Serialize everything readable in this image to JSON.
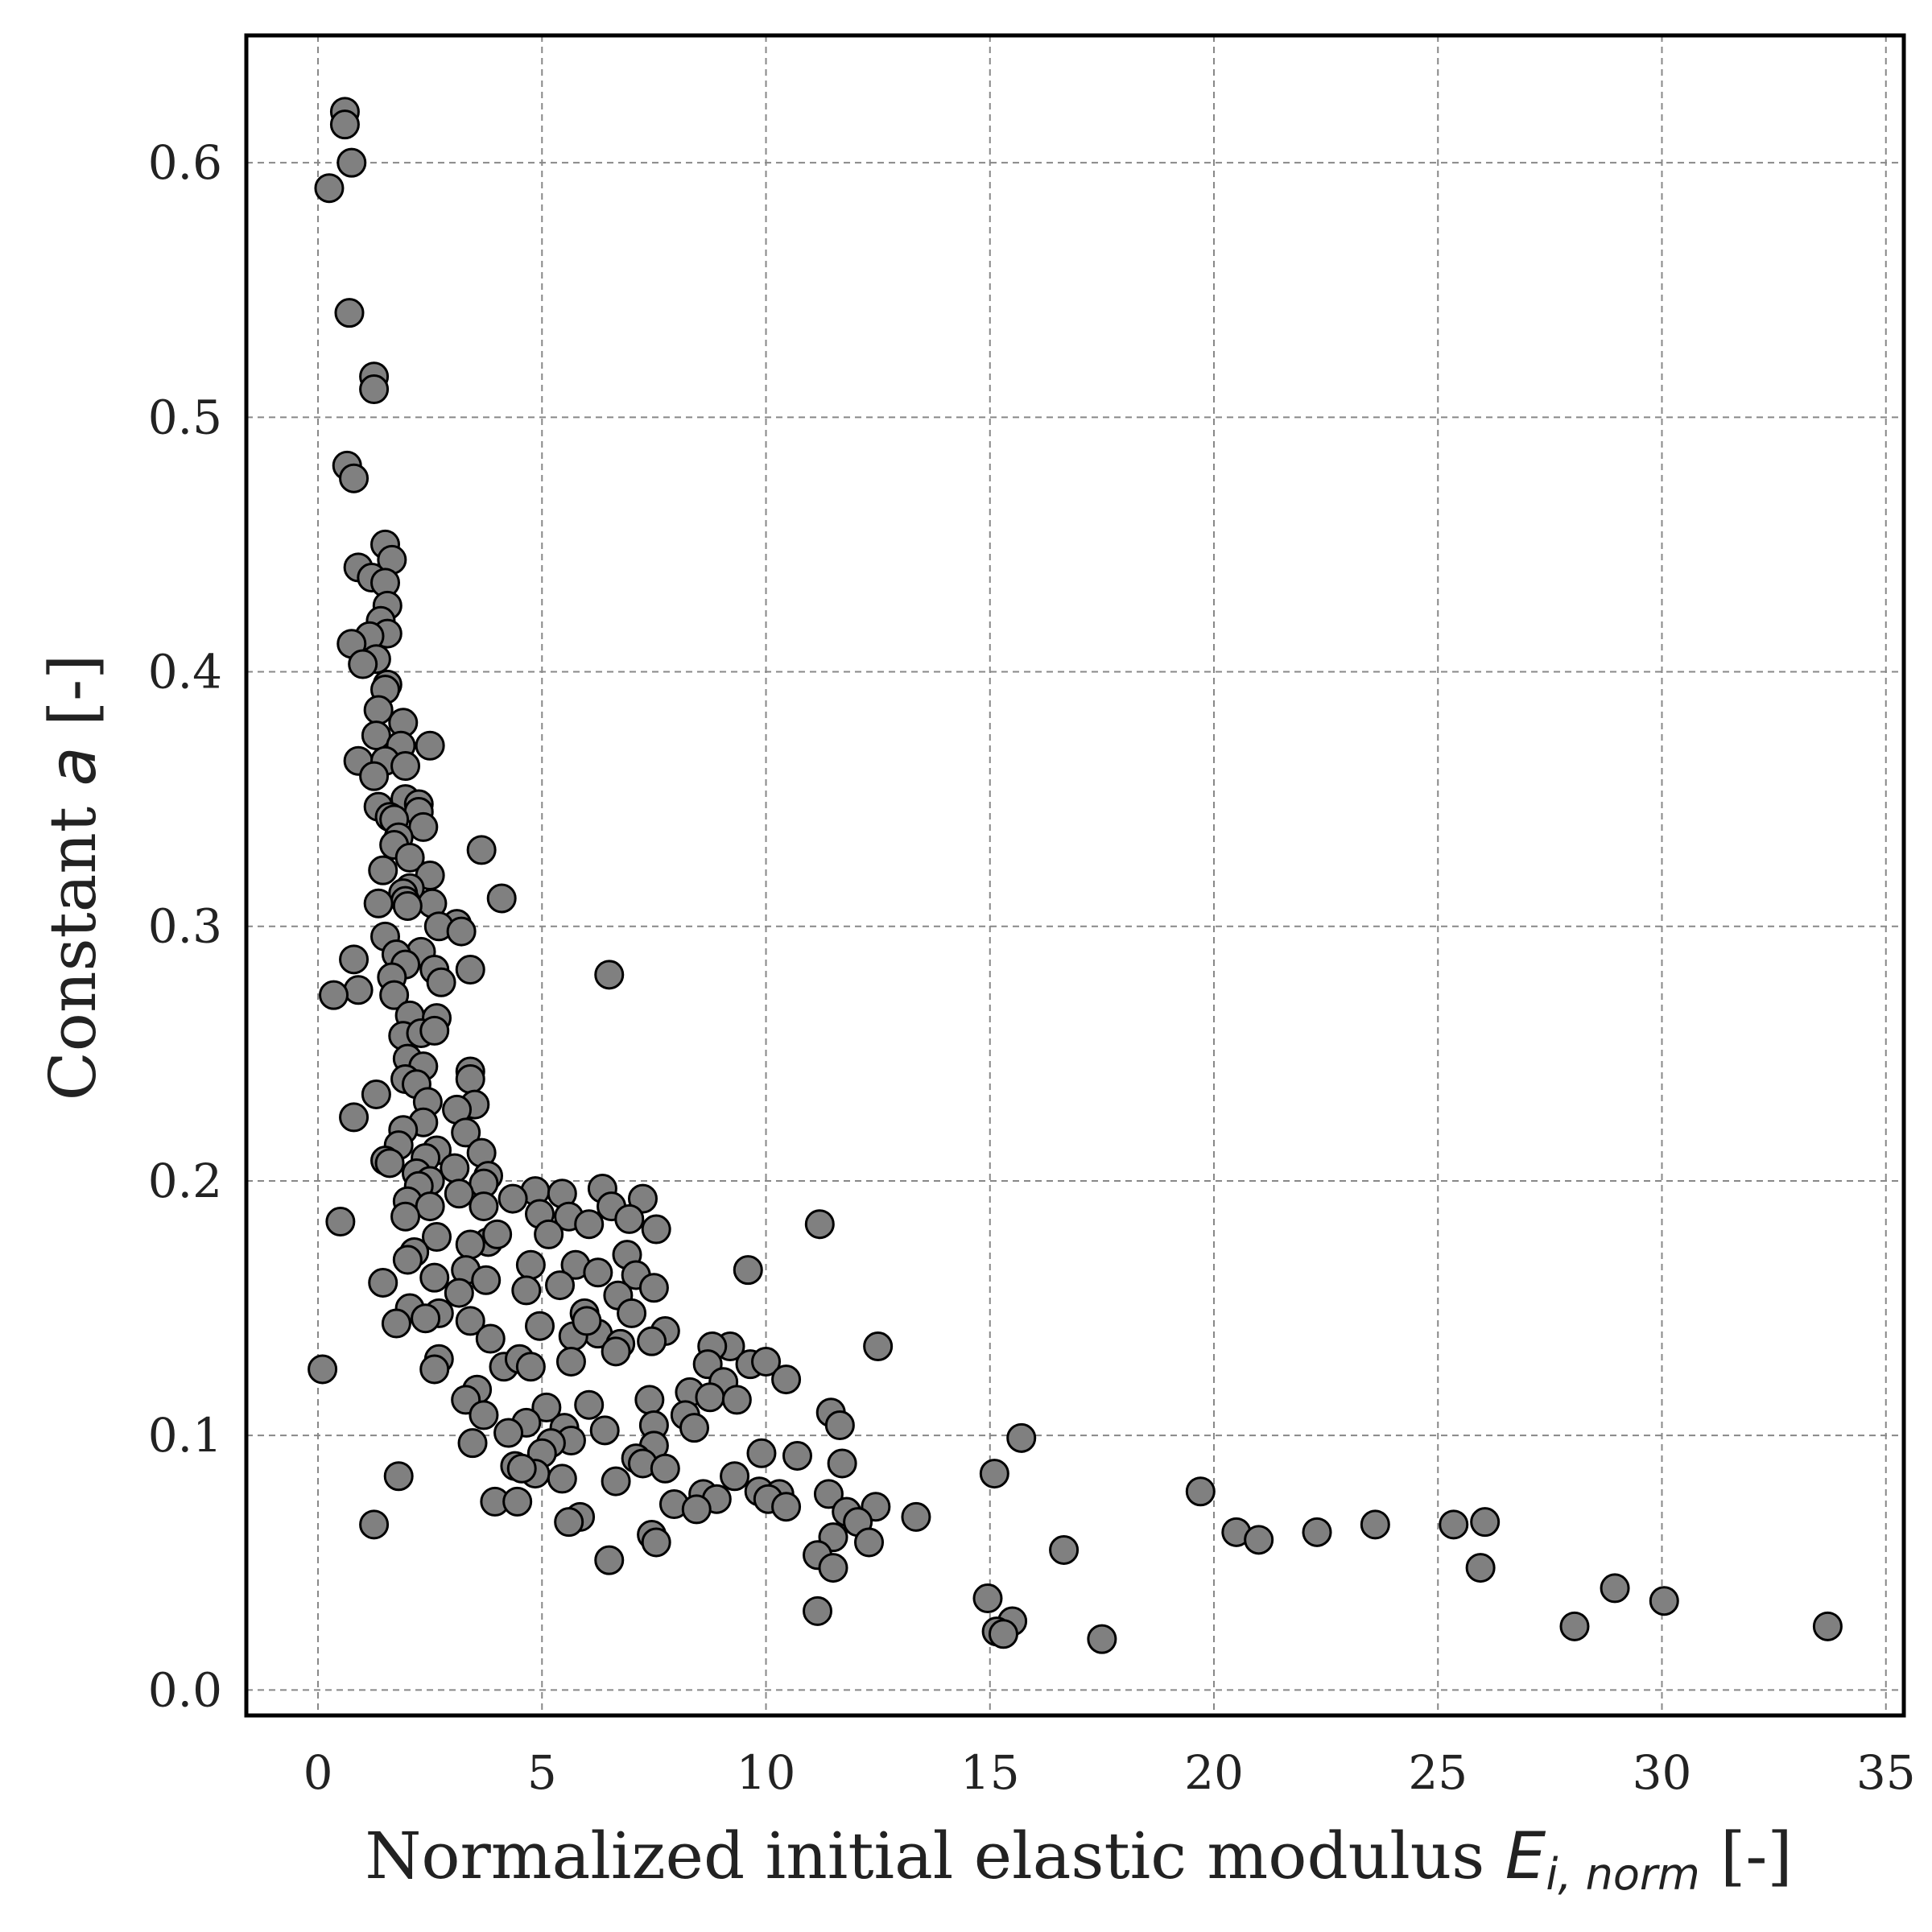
{
  "chart_data": {
    "type": "scatter",
    "xlabel": {
      "prefix": "Normalized initial elastic modulus ",
      "symbol": "E",
      "subscript": "i, norm",
      "suffix": " [-]"
    },
    "ylabel": {
      "prefix": "Constant ",
      "symbol": "a",
      "suffix": " [-]"
    },
    "xlim": [
      -1.6,
      35.4
    ],
    "ylim": [
      -0.01,
      0.65
    ],
    "xticks": [
      "0",
      "5",
      "10",
      "15",
      "20",
      "25",
      "30",
      "35"
    ],
    "yticks": [
      "0.0",
      "0.1",
      "0.2",
      "0.3",
      "0.4",
      "0.5",
      "0.6"
    ],
    "grid": true,
    "colors": {
      "marker_fill": "#808080",
      "marker_edge": "#000000",
      "grid": "#888888",
      "frame": "#000000"
    },
    "points": [
      [
        0.6,
        0.62
      ],
      [
        0.6,
        0.615
      ],
      [
        0.75,
        0.6
      ],
      [
        0.25,
        0.59
      ],
      [
        0.7,
        0.541
      ],
      [
        1.25,
        0.516
      ],
      [
        1.25,
        0.511
      ],
      [
        0.65,
        0.481
      ],
      [
        0.8,
        0.476
      ],
      [
        1.5,
        0.45
      ],
      [
        1.65,
        0.444
      ],
      [
        0.9,
        0.441
      ],
      [
        1.2,
        0.437
      ],
      [
        1.5,
        0.435
      ],
      [
        1.55,
        0.426
      ],
      [
        1.4,
        0.42
      ],
      [
        1.55,
        0.415
      ],
      [
        1.15,
        0.414
      ],
      [
        0.75,
        0.411
      ],
      [
        1.3,
        0.405
      ],
      [
        1.0,
        0.403
      ],
      [
        1.55,
        0.395
      ],
      [
        1.5,
        0.393
      ],
      [
        1.35,
        0.385
      ],
      [
        1.9,
        0.38
      ],
      [
        1.3,
        0.375
      ],
      [
        1.85,
        0.371
      ],
      [
        2.5,
        0.371
      ],
      [
        0.9,
        0.365
      ],
      [
        1.5,
        0.365
      ],
      [
        1.95,
        0.363
      ],
      [
        1.25,
        0.359
      ],
      [
        1.95,
        0.35
      ],
      [
        2.25,
        0.348
      ],
      [
        1.35,
        0.347
      ],
      [
        2.25,
        0.345
      ],
      [
        1.6,
        0.343
      ],
      [
        1.7,
        0.342
      ],
      [
        2.35,
        0.339
      ],
      [
        1.8,
        0.335
      ],
      [
        1.7,
        0.332
      ],
      [
        3.65,
        0.33
      ],
      [
        2.05,
        0.327
      ],
      [
        1.45,
        0.322
      ],
      [
        2.5,
        0.32
      ],
      [
        2.05,
        0.315
      ],
      [
        1.9,
        0.313
      ],
      [
        1.95,
        0.31
      ],
      [
        1.35,
        0.309
      ],
      [
        2.55,
        0.309
      ],
      [
        4.1,
        0.311
      ],
      [
        2.0,
        0.308
      ],
      [
        3.1,
        0.301
      ],
      [
        2.7,
        0.3
      ],
      [
        3.2,
        0.298
      ],
      [
        1.5,
        0.296
      ],
      [
        2.3,
        0.29
      ],
      [
        1.75,
        0.289
      ],
      [
        0.8,
        0.287
      ],
      [
        1.95,
        0.285
      ],
      [
        1.65,
        0.28
      ],
      [
        2.6,
        0.283
      ],
      [
        3.4,
        0.283
      ],
      [
        2.75,
        0.278
      ],
      [
        0.9,
        0.275
      ],
      [
        1.7,
        0.273
      ],
      [
        6.5,
        0.281
      ],
      [
        0.35,
        0.273
      ],
      [
        2.05,
        0.265
      ],
      [
        2.65,
        0.264
      ],
      [
        1.9,
        0.257
      ],
      [
        2.3,
        0.258
      ],
      [
        2.6,
        0.259
      ],
      [
        2.0,
        0.248
      ],
      [
        2.35,
        0.245
      ],
      [
        3.4,
        0.243
      ],
      [
        3.4,
        0.24
      ],
      [
        1.95,
        0.24
      ],
      [
        2.2,
        0.238
      ],
      [
        1.3,
        0.234
      ],
      [
        2.45,
        0.231
      ],
      [
        3.5,
        0.23
      ],
      [
        3.1,
        0.228
      ],
      [
        0.8,
        0.225
      ],
      [
        2.35,
        0.223
      ],
      [
        3.3,
        0.219
      ],
      [
        1.9,
        0.22
      ],
      [
        1.8,
        0.214
      ],
      [
        2.65,
        0.212
      ],
      [
        3.65,
        0.211
      ],
      [
        2.4,
        0.209
      ],
      [
        1.5,
        0.208
      ],
      [
        1.6,
        0.207
      ],
      [
        3.05,
        0.205
      ],
      [
        2.2,
        0.203
      ],
      [
        3.8,
        0.202
      ],
      [
        2.5,
        0.2
      ],
      [
        3.7,
        0.199
      ],
      [
        2.25,
        0.198
      ],
      [
        6.35,
        0.197
      ],
      [
        4.85,
        0.196
      ],
      [
        5.45,
        0.195
      ],
      [
        7.25,
        0.193
      ],
      [
        3.15,
        0.195
      ],
      [
        4.35,
        0.193
      ],
      [
        2.0,
        0.192
      ],
      [
        6.55,
        0.19
      ],
      [
        3.7,
        0.19
      ],
      [
        2.5,
        0.19
      ],
      [
        4.95,
        0.187
      ],
      [
        5.6,
        0.186
      ],
      [
        1.95,
        0.186
      ],
      [
        6.95,
        0.185
      ],
      [
        0.5,
        0.184
      ],
      [
        6.05,
        0.183
      ],
      [
        11.2,
        0.183
      ],
      [
        3.8,
        0.176
      ],
      [
        7.55,
        0.181
      ],
      [
        4.0,
        0.179
      ],
      [
        5.15,
        0.179
      ],
      [
        2.65,
        0.178
      ],
      [
        3.4,
        0.175
      ],
      [
        2.15,
        0.172
      ],
      [
        4.75,
        0.167
      ],
      [
        5.75,
        0.167
      ],
      [
        6.9,
        0.171
      ],
      [
        2.0,
        0.169
      ],
      [
        3.3,
        0.165
      ],
      [
        9.6,
        0.165
      ],
      [
        6.25,
        0.164
      ],
      [
        7.1,
        0.163
      ],
      [
        3.75,
        0.161
      ],
      [
        2.6,
        0.162
      ],
      [
        1.45,
        0.16
      ],
      [
        5.4,
        0.159
      ],
      [
        7.5,
        0.158
      ],
      [
        3.15,
        0.156
      ],
      [
        4.65,
        0.157
      ],
      [
        6.7,
        0.155
      ],
      [
        2.05,
        0.15
      ],
      [
        2.7,
        0.148
      ],
      [
        5.95,
        0.148
      ],
      [
        7.0,
        0.148
      ],
      [
        2.4,
        0.146
      ],
      [
        1.75,
        0.144
      ],
      [
        3.4,
        0.145
      ],
      [
        4.95,
        0.143
      ],
      [
        6.25,
        0.14
      ],
      [
        7.75,
        0.141
      ],
      [
        5.7,
        0.139
      ],
      [
        6.75,
        0.136
      ],
      [
        3.85,
        0.138
      ],
      [
        7.45,
        0.137
      ],
      [
        6.0,
        0.145
      ],
      [
        4.15,
        0.127
      ],
      [
        12.5,
        0.135
      ],
      [
        9.2,
        0.135
      ],
      [
        8.8,
        0.135
      ],
      [
        6.65,
        0.133
      ],
      [
        4.5,
        0.13
      ],
      [
        2.7,
        0.13
      ],
      [
        5.65,
        0.129
      ],
      [
        8.7,
        0.128
      ],
      [
        9.65,
        0.128
      ],
      [
        10.0,
        0.129
      ],
      [
        2.6,
        0.126
      ],
      [
        4.75,
        0.127
      ],
      [
        0.1,
        0.126
      ],
      [
        10.45,
        0.122
      ],
      [
        8.3,
        0.117
      ],
      [
        9.05,
        0.121
      ],
      [
        3.55,
        0.118
      ],
      [
        8.75,
        0.115
      ],
      [
        9.35,
        0.114
      ],
      [
        7.4,
        0.114
      ],
      [
        3.3,
        0.114
      ],
      [
        5.1,
        0.111
      ],
      [
        6.05,
        0.112
      ],
      [
        8.2,
        0.108
      ],
      [
        11.45,
        0.109
      ],
      [
        3.7,
        0.108
      ],
      [
        4.65,
        0.105
      ],
      [
        7.5,
        0.104
      ],
      [
        11.65,
        0.104
      ],
      [
        5.5,
        0.103
      ],
      [
        8.4,
        0.103
      ],
      [
        6.4,
        0.102
      ],
      [
        4.25,
        0.101
      ],
      [
        15.7,
        0.099
      ],
      [
        5.65,
        0.098
      ],
      [
        3.45,
        0.097
      ],
      [
        5.2,
        0.097
      ],
      [
        7.5,
        0.096
      ],
      [
        9.9,
        0.093
      ],
      [
        5.0,
        0.093
      ],
      [
        10.7,
        0.092
      ],
      [
        7.1,
        0.091
      ],
      [
        7.25,
        0.089
      ],
      [
        4.4,
        0.088
      ],
      [
        11.7,
        0.089
      ],
      [
        7.75,
        0.087
      ],
      [
        4.85,
        0.085
      ],
      [
        15.1,
        0.085
      ],
      [
        9.3,
        0.084
      ],
      [
        4.55,
        0.087
      ],
      [
        5.45,
        0.083
      ],
      [
        6.65,
        0.082
      ],
      [
        1.8,
        0.084
      ],
      [
        9.85,
        0.078
      ],
      [
        19.7,
        0.078
      ],
      [
        8.6,
        0.077
      ],
      [
        8.9,
        0.075
      ],
      [
        10.3,
        0.077
      ],
      [
        10.05,
        0.075
      ],
      [
        3.95,
        0.074
      ],
      [
        4.45,
        0.074
      ],
      [
        7.95,
        0.073
      ],
      [
        10.45,
        0.072
      ],
      [
        8.45,
        0.071
      ],
      [
        11.4,
        0.077
      ],
      [
        12.45,
        0.072
      ],
      [
        11.8,
        0.07
      ],
      [
        12.05,
        0.066
      ],
      [
        13.35,
        0.068
      ],
      [
        5.85,
        0.068
      ],
      [
        5.6,
        0.066
      ],
      [
        1.25,
        0.065
      ],
      [
        23.6,
        0.065
      ],
      [
        25.35,
        0.065
      ],
      [
        26.05,
        0.066
      ],
      [
        20.5,
        0.062
      ],
      [
        21.0,
        0.059
      ],
      [
        22.3,
        0.062
      ],
      [
        7.45,
        0.061
      ],
      [
        11.5,
        0.06
      ],
      [
        12.3,
        0.058
      ],
      [
        7.55,
        0.058
      ],
      [
        11.15,
        0.053
      ],
      [
        16.65,
        0.055
      ],
      [
        6.5,
        0.051
      ],
      [
        11.5,
        0.048
      ],
      [
        25.95,
        0.048
      ],
      [
        28.95,
        0.04
      ],
      [
        30.05,
        0.035
      ],
      [
        14.95,
        0.036
      ],
      [
        11.15,
        0.031
      ],
      [
        15.5,
        0.027
      ],
      [
        15.15,
        0.023
      ],
      [
        15.3,
        0.022
      ],
      [
        17.5,
        0.02
      ],
      [
        28.05,
        0.025
      ],
      [
        33.7,
        0.025
      ]
    ]
  }
}
